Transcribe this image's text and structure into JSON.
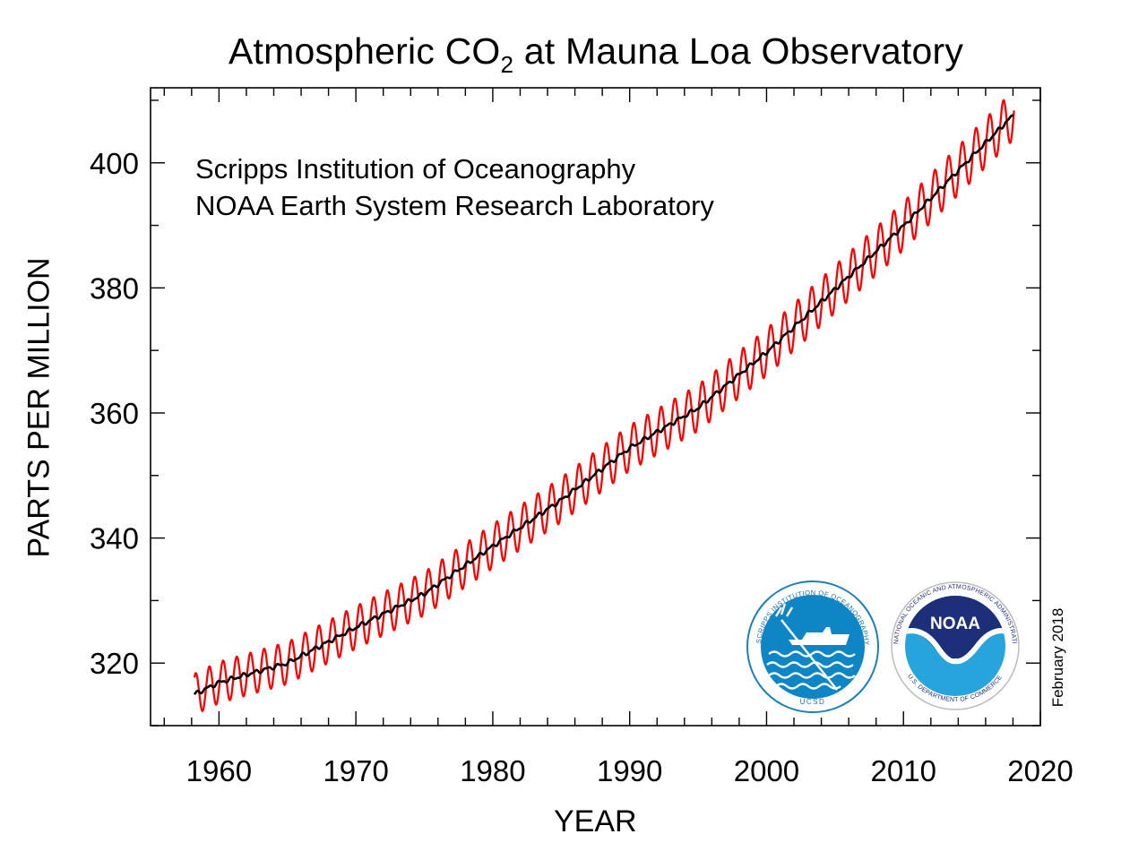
{
  "chart_data": {
    "type": "line",
    "title_main": "Atmospheric CO",
    "title_sub": "2",
    "title_rest": " at Mauna Loa Observatory",
    "annotations": [
      "Scripps Institution of Oceanography",
      "NOAA Earth System Research Laboratory"
    ],
    "xlabel": "YEAR",
    "ylabel": "PARTS PER MILLION",
    "xlim": [
      1955,
      2020
    ],
    "ylim": [
      310,
      412
    ],
    "x_ticks": [
      "1960",
      "1970",
      "1980",
      "1990",
      "2000",
      "2010",
      "2020"
    ],
    "y_ticks": [
      "320",
      "340",
      "360",
      "380",
      "400"
    ],
    "grid": false,
    "date_stamp": "February 2018",
    "colors": {
      "monthly": "#ff0000",
      "trend": "#000000"
    },
    "series": [
      {
        "style": "monthly-mean-seasonal",
        "seasonal_amplitude_ppm": 3.3,
        "x": [
          1958.2,
          2018.1
        ]
      },
      {
        "style": "deseasonalized-trend",
        "x": [
          1958.2,
          1960,
          1965,
          1970,
          1975,
          1980,
          1985,
          1990,
          1995,
          2000,
          2005,
          2010,
          2015,
          2018.1
        ],
        "values": [
          315.0,
          316.9,
          320.0,
          325.7,
          331.1,
          338.7,
          346.1,
          354.4,
          360.8,
          369.7,
          379.8,
          389.9,
          401.0,
          407.8
        ]
      }
    ]
  },
  "logos": [
    {
      "name": "Scripps Institution of Oceanography",
      "ring_text": "SCRIPPS INSTITUTION OF OCEANOGRAPHY",
      "bottom_text": "UCSD"
    },
    {
      "name": "NOAA",
      "ring_text": "NATIONAL OCEANIC AND ATMOSPHERIC ADMINISTRATION",
      "bottom_text": "U.S. DEPARTMENT OF COMMERCE",
      "center_text": "NOAA"
    }
  ]
}
